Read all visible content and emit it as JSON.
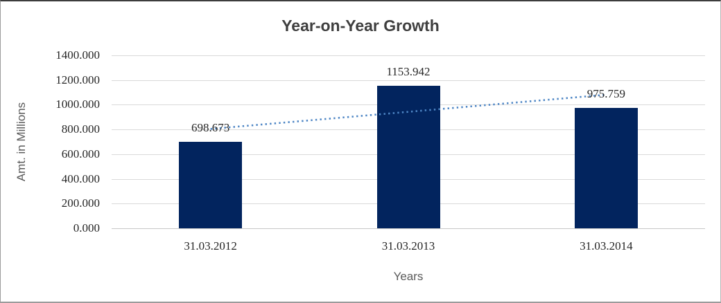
{
  "window": {
    "background": "#ffffff"
  },
  "chart_data": {
    "type": "bar",
    "title": "Year-on-Year Growth",
    "xlabel": "Years",
    "ylabel": "Amt. in Millions",
    "categories": [
      "31.03.2012",
      "31.03.2013",
      "31.03.2014"
    ],
    "series": [
      {
        "name": "Amt. in Millions",
        "values": [
          698.673,
          1153.942,
          975.759
        ],
        "data_labels": [
          "698.673",
          "1153.942",
          "975.759"
        ],
        "color": "#02245e"
      }
    ],
    "y_ticks": [
      "0.000",
      "200.000",
      "400.000",
      "600.000",
      "800.000",
      "1000.000",
      "1200.000",
      "1400.000"
    ],
    "y_tick_values": [
      0,
      200,
      400,
      600,
      800,
      1000,
      1200,
      1400
    ],
    "ylim": [
      0,
      1400
    ],
    "grid": "horizontal",
    "legend": "none",
    "trendline": {
      "type": "linear",
      "style": "dotted",
      "color": "#4e86c5",
      "endpoint_values": [
        804.3,
        1081.3
      ]
    },
    "colors": {
      "bar": "#02245e",
      "gridline": "#d9d9d9",
      "title_text": "#3f3f3f",
      "tick_text": "#262626",
      "axis_title_text": "#595959"
    }
  }
}
